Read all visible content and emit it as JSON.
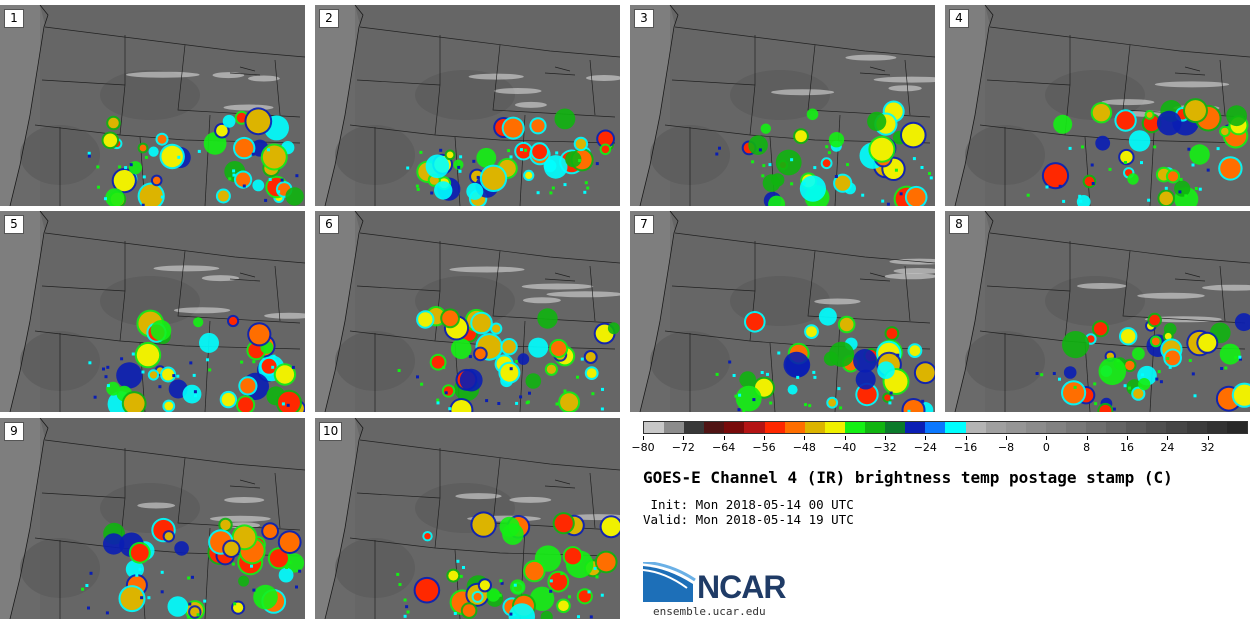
{
  "panels": [
    {
      "label": "1"
    },
    {
      "label": "2"
    },
    {
      "label": "3"
    },
    {
      "label": "4"
    },
    {
      "label": "5"
    },
    {
      "label": "6"
    },
    {
      "label": "7"
    },
    {
      "label": "8"
    },
    {
      "label": "9"
    },
    {
      "label": "10"
    }
  ],
  "colorbar": {
    "colors": [
      "#c8c8c8",
      "#8c8c8c",
      "#383838",
      "#501414",
      "#780a0a",
      "#b41414",
      "#ff2800",
      "#ff6e00",
      "#dcb400",
      "#f0f000",
      "#14f014",
      "#10b410",
      "#0a7a2a",
      "#0a1eb4",
      "#0a78ff",
      "#00ffff",
      "#b4b4b4",
      "#a0a0a0",
      "#969696",
      "#8c8c8c",
      "#828282",
      "#787878",
      "#6e6e6e",
      "#646464",
      "#5a5a5a",
      "#505050",
      "#464646",
      "#3c3c3c",
      "#323232",
      "#282828"
    ],
    "tick_labels": [
      "−80",
      "−72",
      "−64",
      "−56",
      "−48",
      "−40",
      "−32",
      "−24",
      "−16",
      "−8",
      "0",
      "8",
      "16",
      "24",
      "32"
    ]
  },
  "title": "GOES-E Channel 4 (IR) brightness temp postage stamp (C)",
  "init": " Init: Mon 2018-05-14 00 UTC",
  "valid": "Valid: Mon 2018-05-14 19 UTC",
  "logo": {
    "text": "NCAR",
    "url": "ensemble.ucar.edu"
  }
}
